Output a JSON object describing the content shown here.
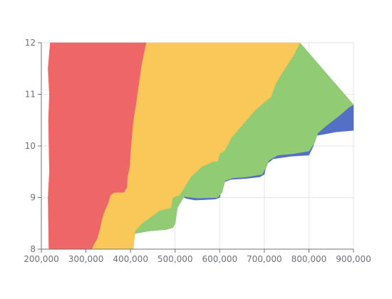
{
  "chart_data": {
    "type": "area",
    "title": "",
    "xlabel": "",
    "ylabel": "",
    "xlim": [
      200000,
      900000
    ],
    "ylim": [
      8,
      12
    ],
    "x_ticks": [
      200000,
      300000,
      400000,
      500000,
      600000,
      700000,
      800000,
      900000
    ],
    "x_tick_labels": [
      "200,000",
      "300,000",
      "400,000",
      "500,000",
      "600,000",
      "700,000",
      "800,000",
      "900,000"
    ],
    "y_ticks": [
      8,
      9,
      10,
      11,
      12
    ],
    "y_tick_labels": [
      "8",
      "9",
      "10",
      "11",
      "12"
    ],
    "grid": true,
    "legend": "none",
    "series": [
      {
        "color": "#5470c6",
        "lower": [
          [
            401000,
            8.0
          ],
          [
            404000,
            8.33
          ],
          [
            412000,
            8.37
          ],
          [
            440000,
            8.38
          ],
          [
            478000,
            8.4
          ],
          [
            493000,
            8.42
          ],
          [
            496000,
            8.55
          ],
          [
            502000,
            8.75
          ],
          [
            510000,
            8.98
          ],
          [
            515000,
            9.03
          ],
          [
            525000,
            8.98
          ],
          [
            545000,
            8.95
          ],
          [
            570000,
            8.96
          ],
          [
            590000,
            8.97
          ],
          [
            600000,
            9.0
          ],
          [
            605000,
            9.2
          ],
          [
            610000,
            9.3
          ],
          [
            625000,
            9.35
          ],
          [
            660000,
            9.37
          ],
          [
            690000,
            9.4
          ],
          [
            700000,
            9.45
          ],
          [
            705000,
            9.65
          ],
          [
            720000,
            9.75
          ],
          [
            760000,
            9.8
          ],
          [
            800000,
            9.82
          ],
          [
            810000,
            10.0
          ],
          [
            815000,
            10.2
          ],
          [
            830000,
            10.22
          ],
          [
            860000,
            10.27
          ],
          [
            900000,
            10.3
          ]
        ],
        "upper": [
          [
            406000,
            8.0
          ],
          [
            408000,
            8.3
          ],
          [
            440000,
            8.35
          ],
          [
            480000,
            8.38
          ],
          [
            495000,
            8.42
          ],
          [
            500000,
            8.5
          ],
          [
            505000,
            8.8
          ],
          [
            520000,
            9.02
          ],
          [
            550000,
            8.99
          ],
          [
            595000,
            9.0
          ],
          [
            605000,
            9.1
          ],
          [
            612000,
            9.33
          ],
          [
            630000,
            9.38
          ],
          [
            660000,
            9.4
          ],
          [
            695000,
            9.45
          ],
          [
            705000,
            9.6
          ],
          [
            710000,
            9.72
          ],
          [
            730000,
            9.82
          ],
          [
            765000,
            9.85
          ],
          [
            800000,
            9.9
          ],
          [
            812000,
            10.05
          ],
          [
            820000,
            10.25
          ],
          [
            840000,
            10.4
          ],
          [
            870000,
            10.6
          ],
          [
            890000,
            10.75
          ],
          [
            900000,
            10.8
          ]
        ]
      },
      {
        "color": "#91cc75",
        "lower": [
          [
            406000,
            8.0
          ],
          [
            408000,
            8.3
          ],
          [
            440000,
            8.35
          ],
          [
            480000,
            8.38
          ],
          [
            495000,
            8.42
          ],
          [
            500000,
            8.5
          ],
          [
            505000,
            8.8
          ],
          [
            520000,
            9.02
          ],
          [
            550000,
            8.99
          ],
          [
            595000,
            9.0
          ],
          [
            605000,
            9.1
          ],
          [
            612000,
            9.33
          ],
          [
            630000,
            9.38
          ],
          [
            660000,
            9.4
          ],
          [
            695000,
            9.45
          ],
          [
            705000,
            9.6
          ],
          [
            710000,
            9.72
          ],
          [
            730000,
            9.82
          ],
          [
            765000,
            9.85
          ],
          [
            800000,
            9.9
          ],
          [
            812000,
            10.05
          ],
          [
            820000,
            10.25
          ],
          [
            840000,
            10.4
          ],
          [
            870000,
            10.6
          ],
          [
            890000,
            10.75
          ],
          [
            900000,
            10.8
          ]
        ],
        "upper": [
          [
            406000,
            8.0
          ],
          [
            410000,
            8.35
          ],
          [
            425000,
            8.5
          ],
          [
            450000,
            8.65
          ],
          [
            465000,
            8.75
          ],
          [
            490000,
            8.8
          ],
          [
            495000,
            9.0
          ],
          [
            510000,
            9.05
          ],
          [
            535000,
            9.4
          ],
          [
            560000,
            9.6
          ],
          [
            585000,
            9.7
          ],
          [
            595000,
            9.7
          ],
          [
            600000,
            9.85
          ],
          [
            610000,
            9.9
          ],
          [
            620000,
            10.05
          ],
          [
            625000,
            10.15
          ],
          [
            640000,
            10.3
          ],
          [
            660000,
            10.5
          ],
          [
            680000,
            10.7
          ],
          [
            700000,
            10.85
          ],
          [
            715000,
            10.95
          ],
          [
            725000,
            11.2
          ],
          [
            735000,
            11.35
          ],
          [
            750000,
            11.55
          ],
          [
            765000,
            11.75
          ],
          [
            780000,
            12.0
          ],
          [
            900000,
            10.8
          ]
        ]
      },
      {
        "color": "#fac858",
        "lower": [
          [
            406000,
            8.0
          ],
          [
            410000,
            8.35
          ],
          [
            425000,
            8.5
          ],
          [
            450000,
            8.65
          ],
          [
            465000,
            8.75
          ],
          [
            490000,
            8.8
          ],
          [
            495000,
            9.0
          ],
          [
            510000,
            9.05
          ],
          [
            535000,
            9.4
          ],
          [
            560000,
            9.6
          ],
          [
            585000,
            9.7
          ],
          [
            595000,
            9.7
          ],
          [
            600000,
            9.85
          ],
          [
            610000,
            9.9
          ],
          [
            620000,
            10.05
          ],
          [
            625000,
            10.15
          ],
          [
            640000,
            10.3
          ],
          [
            660000,
            10.5
          ],
          [
            680000,
            10.7
          ],
          [
            700000,
            10.85
          ],
          [
            715000,
            10.95
          ],
          [
            725000,
            11.2
          ],
          [
            735000,
            11.35
          ],
          [
            750000,
            11.55
          ],
          [
            765000,
            11.75
          ],
          [
            780000,
            12.0
          ]
        ],
        "upper": [
          [
            313000,
            8.0
          ],
          [
            318000,
            8.1
          ],
          [
            325000,
            8.2
          ],
          [
            330000,
            8.35
          ],
          [
            335000,
            8.55
          ],
          [
            340000,
            8.7
          ],
          [
            345000,
            8.8
          ],
          [
            350000,
            8.9
          ],
          [
            355000,
            9.05
          ],
          [
            365000,
            9.1
          ],
          [
            385000,
            9.1
          ],
          [
            392000,
            9.2
          ],
          [
            393000,
            9.4
          ],
          [
            398000,
            9.6
          ],
          [
            400000,
            9.9
          ],
          [
            402000,
            10.1
          ],
          [
            405000,
            10.4
          ],
          [
            408000,
            10.6
          ],
          [
            412000,
            10.8
          ],
          [
            415000,
            11.0
          ],
          [
            420000,
            11.3
          ],
          [
            425000,
            11.6
          ],
          [
            430000,
            11.8
          ],
          [
            435000,
            12.0
          ]
        ]
      },
      {
        "color": "#ee6666",
        "lower": [
          [
            217000,
            8.0
          ],
          [
            216000,
            8.5
          ],
          [
            215000,
            9.0
          ],
          [
            218000,
            9.5
          ],
          [
            217000,
            10.0
          ],
          [
            216000,
            10.5
          ],
          [
            218000,
            11.0
          ],
          [
            215000,
            11.5
          ],
          [
            220000,
            12.0
          ]
        ],
        "upper": [
          [
            313000,
            8.0
          ],
          [
            318000,
            8.1
          ],
          [
            325000,
            8.2
          ],
          [
            330000,
            8.35
          ],
          [
            335000,
            8.55
          ],
          [
            340000,
            8.7
          ],
          [
            345000,
            8.8
          ],
          [
            350000,
            8.9
          ],
          [
            355000,
            9.05
          ],
          [
            365000,
            9.1
          ],
          [
            385000,
            9.1
          ],
          [
            392000,
            9.2
          ],
          [
            393000,
            9.4
          ],
          [
            398000,
            9.6
          ],
          [
            400000,
            9.9
          ],
          [
            402000,
            10.1
          ],
          [
            405000,
            10.4
          ],
          [
            408000,
            10.6
          ],
          [
            412000,
            10.8
          ],
          [
            415000,
            11.0
          ],
          [
            420000,
            11.3
          ],
          [
            425000,
            11.6
          ],
          [
            430000,
            11.8
          ],
          [
            435000,
            12.0
          ]
        ]
      }
    ]
  }
}
